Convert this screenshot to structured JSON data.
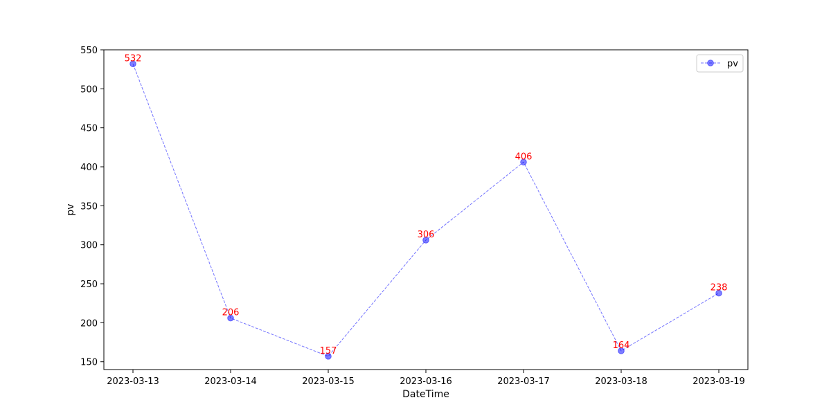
{
  "chart_data": {
    "type": "line",
    "title": "",
    "xlabel": "DateTime",
    "ylabel": "pv",
    "categories": [
      "2023-03-13",
      "2023-03-14",
      "2023-03-15",
      "2023-03-16",
      "2023-03-17",
      "2023-03-18",
      "2023-03-19"
    ],
    "series": [
      {
        "name": "pv",
        "values": [
          532,
          206,
          157,
          306,
          406,
          164,
          238
        ]
      }
    ],
    "y_ticks": [
      150,
      200,
      250,
      300,
      350,
      400,
      450,
      500,
      550
    ],
    "ylim": [
      140,
      550
    ],
    "grid": false,
    "legend": "top-right",
    "line_style": "dashed",
    "marker": "circle",
    "colors": {
      "series": "#0000ff",
      "data_labels": "#ff0000",
      "axes": "#000000"
    }
  }
}
